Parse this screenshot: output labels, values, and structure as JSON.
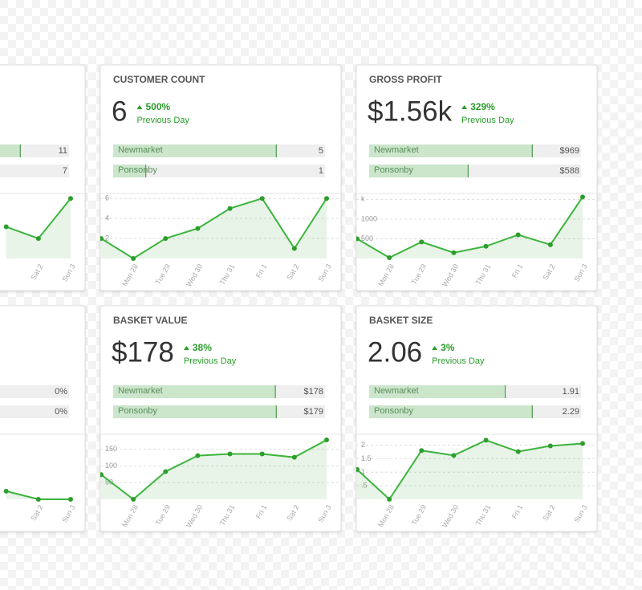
{
  "cards": [
    {
      "rows": {
        "values": [
          11,
          7
        ]
      },
      "chart": {
        "type": "line",
        "categories": [
          null,
          "Sat 2",
          "Sun 3"
        ],
        "values": [
          9.5,
          6,
          18
        ],
        "ylim": [
          0,
          19.5
        ]
      }
    },
    {
      "title": "CUSTOMER COUNT",
      "value": "6",
      "change": "500%",
      "change_label": "Previous Day",
      "rows": {
        "names": [
          "Newmarket",
          "Ponsonby"
        ],
        "values": [
          5,
          1
        ]
      },
      "chart": {
        "type": "line",
        "categories": [
          null,
          "Mon 28",
          "Tue 29",
          "Wed 30",
          "Thu 31",
          "Fri 1",
          "Sat 2",
          "Sun 3"
        ],
        "values": [
          2,
          0,
          2,
          3,
          5,
          6,
          1,
          6
        ],
        "ylim": [
          0,
          6.5
        ],
        "yticks": [
          2,
          4,
          6
        ]
      }
    },
    {
      "title": "GROSS PROFIT",
      "value": "$1.56k",
      "change": "329%",
      "change_label": "Previous Day",
      "rows": {
        "names": [
          "Newmarket",
          "Ponsonby"
        ],
        "values": [
          969,
          588
        ],
        "value_labels": [
          "$969",
          "$588"
        ]
      },
      "chart": {
        "type": "line",
        "categories": [
          null,
          "Mon 28",
          "Tue 29",
          "Wed 30",
          "Thu 31",
          "Fri 1",
          "Sat 2",
          "Sun 3"
        ],
        "values": [
          500,
          20,
          420,
          145,
          310,
          600,
          350,
          1560
        ],
        "ylim": [
          0,
          1650
        ],
        "yticks": [
          500,
          1000,
          {
            "value": 1500,
            "label": "k"
          }
        ]
      }
    },
    {
      "rows": {
        "values": [
          0,
          0
        ],
        "value_labels": [
          "0%",
          "0%"
        ]
      },
      "chart": {
        "type": "line",
        "categories": [
          null,
          "Sat 2",
          "Sun 3"
        ],
        "values": [
          1,
          0,
          0
        ],
        "ylim": [
          0,
          8
        ]
      }
    },
    {
      "title": "BASKET VALUE",
      "value": "$178",
      "change": "38%",
      "change_label": "Previous Day",
      "rows": {
        "names": [
          "Newmarket",
          "Ponsonby"
        ],
        "values": [
          178,
          179
        ],
        "value_labels": [
          "$178",
          "$179"
        ]
      },
      "chart": {
        "type": "line",
        "categories": [
          null,
          "Mon 28",
          "Tue 29",
          "Wed 30",
          "Thu 31",
          "Fri 1",
          "Sat 2",
          "Sun 3"
        ],
        "values": [
          74,
          0,
          83,
          131,
          136,
          136,
          126,
          178
        ],
        "ylim": [
          0,
          195
        ],
        "yticks": [
          50,
          100,
          150
        ]
      }
    },
    {
      "title": "BASKET SIZE",
      "value": "2.06",
      "change": "3%",
      "change_label": "Previous Day",
      "rows": {
        "names": [
          "Newmarket",
          "Ponsonby"
        ],
        "values": [
          1.91,
          2.29
        ]
      },
      "chart": {
        "type": "line",
        "categories": [
          null,
          "Mon 28",
          "Tue 29",
          "Wed 30",
          "Thu 31",
          "Fri 1",
          "Sat 2",
          "Sun 3"
        ],
        "values": [
          1.1,
          0,
          1.8,
          1.62,
          2.18,
          1.76,
          1.97,
          2.06
        ],
        "ylim": [
          0,
          2.4
        ],
        "yticks": [
          {
            "value": 0.5,
            "label": ".5"
          },
          1,
          1.5,
          2
        ]
      }
    }
  ]
}
